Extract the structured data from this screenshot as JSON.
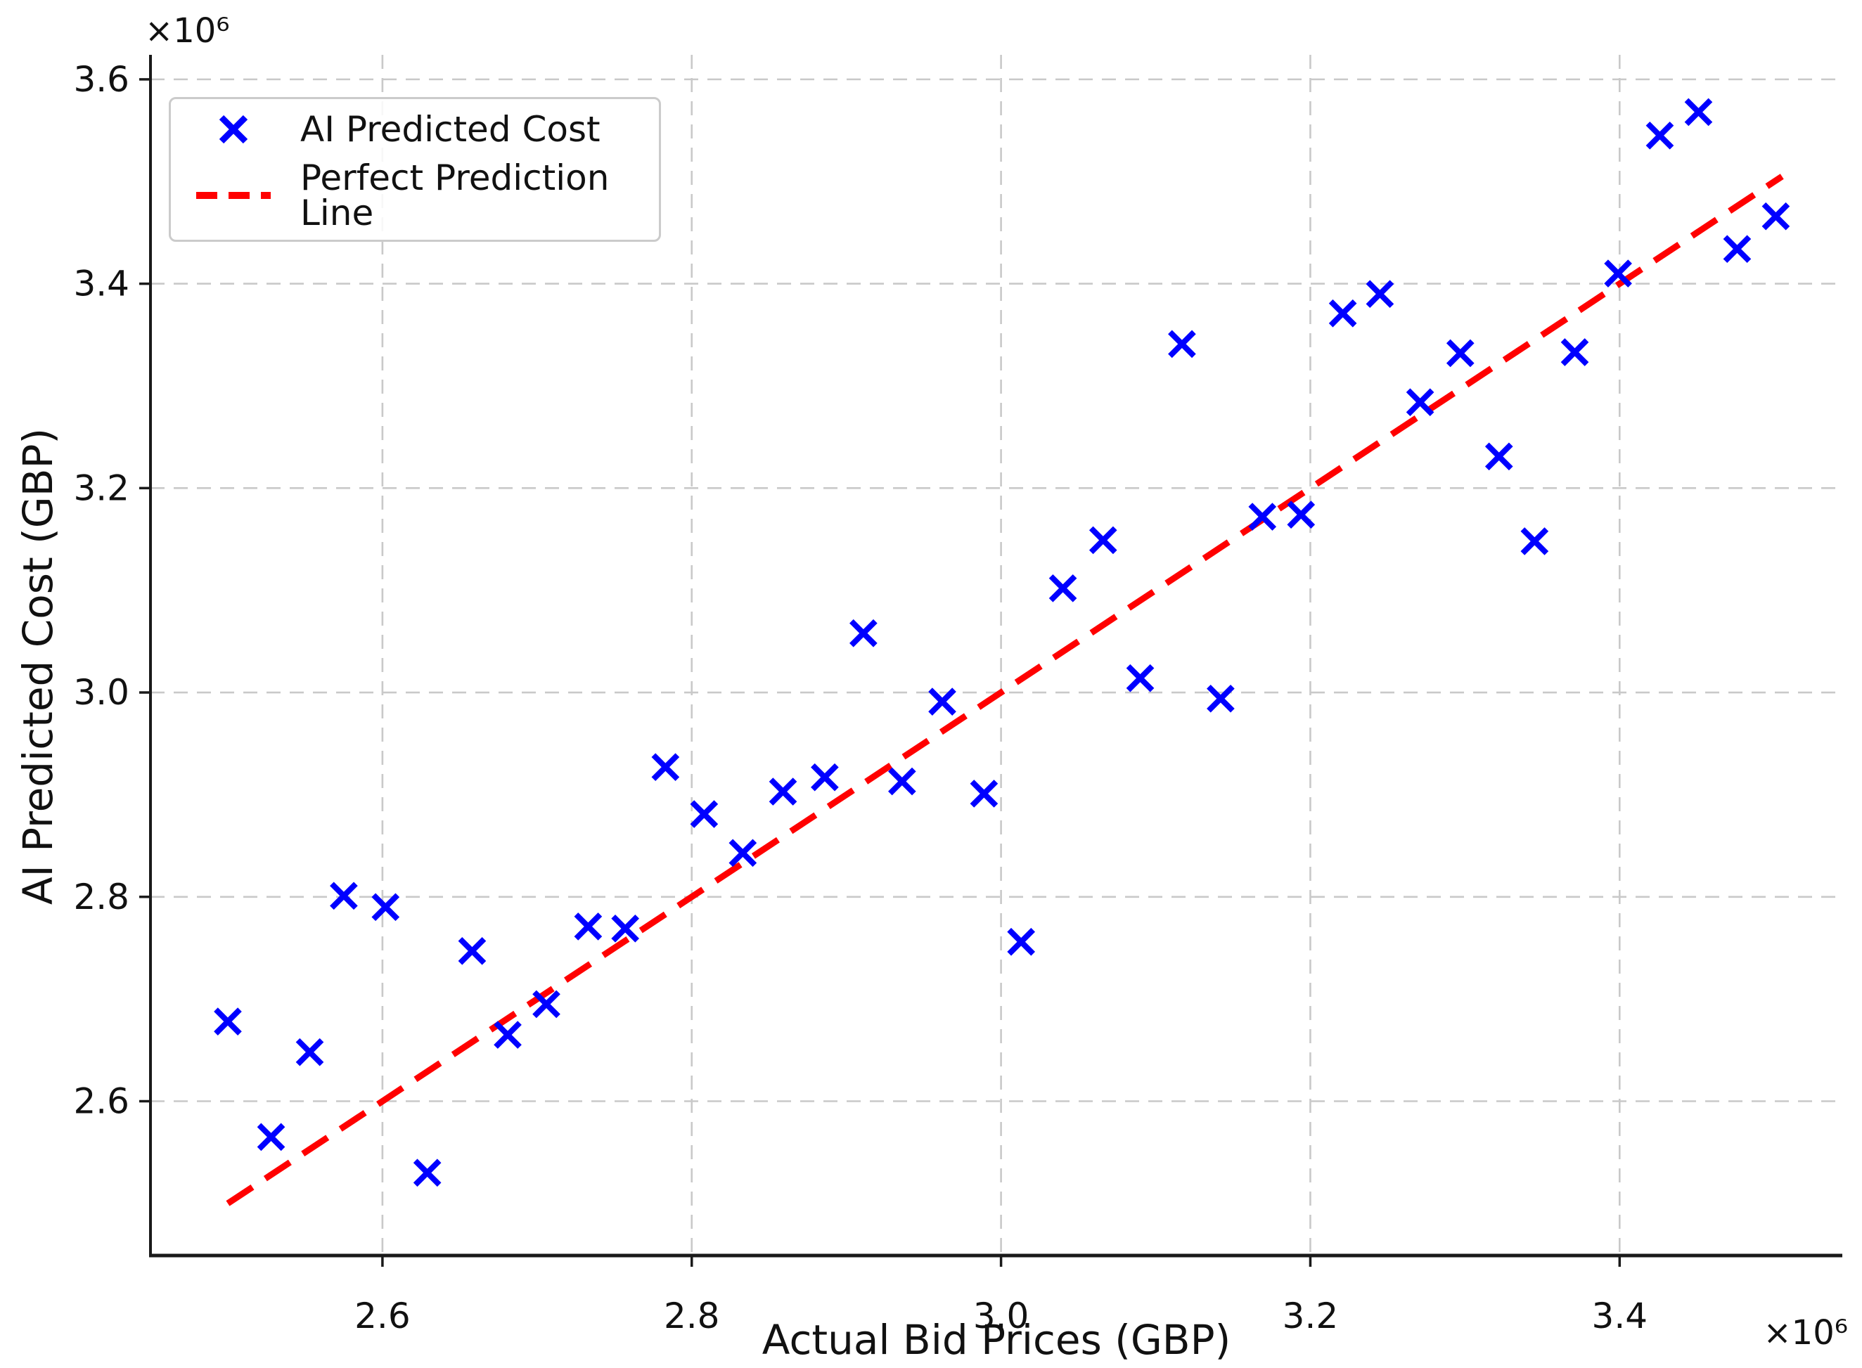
{
  "chart_data": {
    "type": "scatter",
    "title": "",
    "xlabel": "Actual Bid Prices (GBP)",
    "ylabel": "AI Predicted Cost (GBP)",
    "x_offset_text": "×10⁶",
    "y_offset_text": "×10⁶",
    "xlim": [
      2450000,
      3544000
    ],
    "ylim": [
      2449000,
      3624000
    ],
    "x_ticks": {
      "values": [
        2600000,
        2800000,
        3000000,
        3200000,
        3400000
      ],
      "labels": [
        "2.6",
        "2.8",
        "3.0",
        "3.2",
        "3.4"
      ]
    },
    "y_ticks": {
      "values": [
        2600000,
        2800000,
        3000000,
        3200000,
        3400000,
        3600000
      ],
      "labels": [
        "2.6",
        "2.8",
        "3.0",
        "3.2",
        "3.4",
        "3.6"
      ]
    },
    "grid": {
      "visible": true,
      "style": "dashed"
    },
    "legend_position": "upper-left",
    "series": [
      {
        "name": "AI Predicted Cost",
        "kind": "scatter",
        "marker": "x",
        "color": "#0000ff",
        "points": [
          [
            2500000,
            2678000
          ],
          [
            2528000,
            2565000
          ],
          [
            2553000,
            2648000
          ],
          [
            2575000,
            2801000
          ],
          [
            2602000,
            2790000
          ],
          [
            2629000,
            2530000
          ],
          [
            2658000,
            2747000
          ],
          [
            2681000,
            2665000
          ],
          [
            2706000,
            2695000
          ],
          [
            2733000,
            2771000
          ],
          [
            2757000,
            2769000
          ],
          [
            2783000,
            2927000
          ],
          [
            2808000,
            2881000
          ],
          [
            2833000,
            2843000
          ],
          [
            2859000,
            2903000
          ],
          [
            2886000,
            2917000
          ],
          [
            2911000,
            3058000
          ],
          [
            2936000,
            2913000
          ],
          [
            2962000,
            2991000
          ],
          [
            2989000,
            2901000
          ],
          [
            3013000,
            2756000
          ],
          [
            3040000,
            3102000
          ],
          [
            3066000,
            3149000
          ],
          [
            3090000,
            3014000
          ],
          [
            3117000,
            3341000
          ],
          [
            3142000,
            2994000
          ],
          [
            3169000,
            3172000
          ],
          [
            3194000,
            3174000
          ],
          [
            3221000,
            3371000
          ],
          [
            3245000,
            3390000
          ],
          [
            3271000,
            3284000
          ],
          [
            3297000,
            3332000
          ],
          [
            3322000,
            3231000
          ],
          [
            3345000,
            3148000
          ],
          [
            3371000,
            3333000
          ],
          [
            3399000,
            3410000
          ],
          [
            3426000,
            3545000
          ],
          [
            3451000,
            3568000
          ],
          [
            3476000,
            3434000
          ],
          [
            3501000,
            3466000
          ]
        ]
      },
      {
        "name": "Perfect Prediction Line",
        "kind": "line",
        "linestyle": "dashed",
        "color": "#ff0000",
        "points": [
          [
            2500000,
            2500000
          ],
          [
            3505000,
            3505000
          ]
        ]
      }
    ]
  },
  "colors": {
    "background": "#ffffff",
    "axis": "#1a1a1a",
    "text": "#111111",
    "grid": "#c9c9c9",
    "legend_border": "#cbcbcb"
  }
}
